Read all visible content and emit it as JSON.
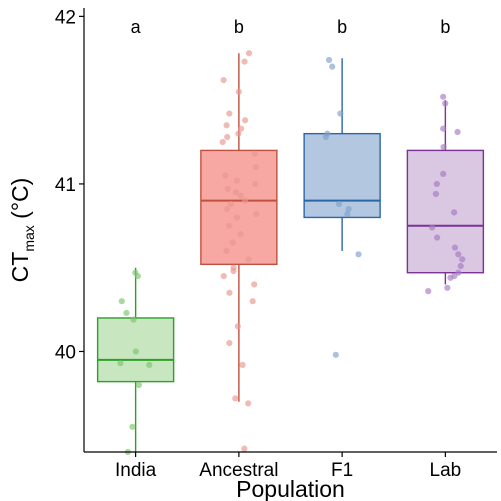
{
  "chart_data": {
    "type": "boxplot",
    "title": "",
    "xlabel": "Population",
    "ylabel": {
      "base": "CT",
      "subscript": "max",
      "unit": "(°C)"
    },
    "ylim": [
      39.4,
      42.05
    ],
    "yticks": [
      "40",
      "41",
      "42"
    ],
    "grid": false,
    "legend": "none",
    "categories": [
      "India",
      "Ancestral",
      "F1",
      "Lab"
    ],
    "significance_letters": [
      "a",
      "b",
      "b",
      "b"
    ],
    "colors": {
      "India": {
        "stroke": "#2ca02c",
        "fill": "#c8e6bf",
        "point": "#7cc46c"
      },
      "Ancestral": {
        "stroke": "#c0503f",
        "fill": "#f7a8a2",
        "point": "#e8978d"
      },
      "F1": {
        "stroke": "#2b66a8",
        "fill": "#b3c8e0",
        "point": "#7f9fcc"
      },
      "Lab": {
        "stroke": "#7b3294",
        "fill": "#dac7e2",
        "point": "#a679c4"
      }
    },
    "boxes": [
      {
        "category": "India",
        "whisker_low": 39.4,
        "q1": 39.82,
        "median": 39.95,
        "q3": 40.2,
        "whisker_high": 40.5
      },
      {
        "category": "Ancestral",
        "whisker_low": 39.7,
        "q1": 40.52,
        "median": 40.9,
        "q3": 41.2,
        "whisker_high": 41.78
      },
      {
        "category": "F1",
        "whisker_low": 40.6,
        "q1": 40.8,
        "median": 40.9,
        "q3": 41.3,
        "whisker_high": 41.75
      },
      {
        "category": "Lab",
        "whisker_low": 40.4,
        "q1": 40.47,
        "median": 40.75,
        "q3": 41.2,
        "whisker_high": 41.5
      }
    ],
    "points": {
      "India": [
        40.47,
        40.45,
        40.3,
        40.23,
        40.19,
        40.0,
        39.93,
        39.92,
        39.8,
        39.55,
        39.4
      ],
      "Ancestral": [
        41.78,
        41.73,
        41.62,
        41.55,
        41.42,
        41.38,
        41.35,
        41.33,
        41.3,
        41.28,
        41.25,
        41.18,
        41.1,
        41.05,
        41.02,
        41.0,
        40.97,
        40.95,
        40.93,
        40.9,
        40.88,
        40.85,
        40.82,
        40.8,
        40.75,
        40.7,
        40.65,
        40.6,
        40.55,
        40.5,
        40.48,
        40.45,
        40.4,
        40.35,
        40.3,
        40.15,
        40.05,
        39.92,
        39.72,
        39.69,
        39.42
      ],
      "F1": [
        41.74,
        41.7,
        41.42,
        41.3,
        41.28,
        40.88,
        40.85,
        40.82,
        40.58,
        39.98
      ],
      "Lab": [
        41.52,
        41.48,
        41.33,
        41.31,
        41.22,
        41.06,
        41.0,
        40.94,
        40.83,
        40.74,
        40.68,
        40.62,
        40.58,
        40.55,
        40.51,
        40.47,
        40.45,
        40.44,
        40.38,
        40.36
      ]
    }
  }
}
